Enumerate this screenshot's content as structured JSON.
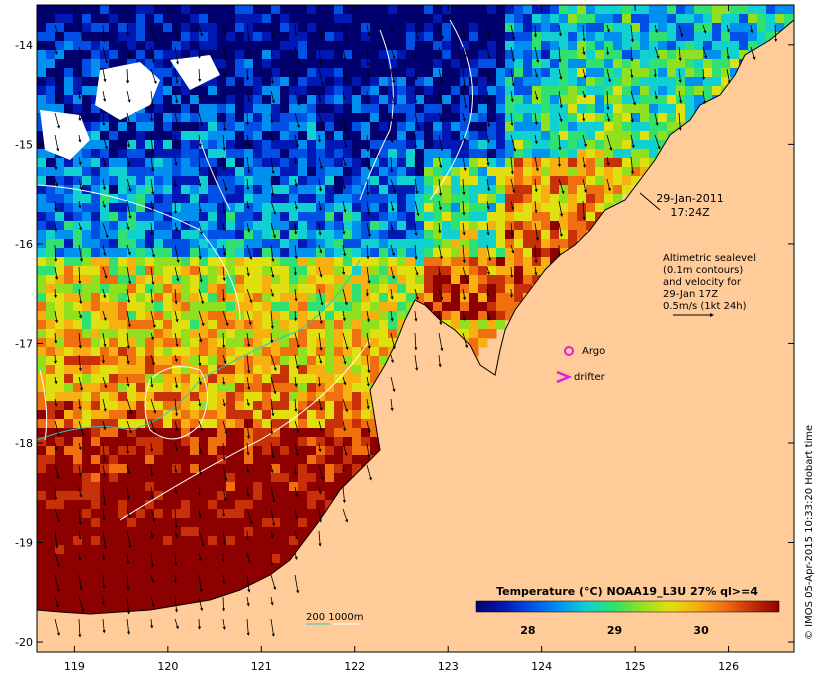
{
  "map": {
    "lon_range": [
      118.6,
      126.7
    ],
    "lat_range": [
      -20.1,
      -13.6
    ],
    "lon_ticks": [
      "119",
      "120",
      "121",
      "122",
      "123",
      "124",
      "125",
      "126"
    ],
    "lat_ticks": [
      "-14",
      "-15",
      "-16",
      "-17",
      "-18",
      "-19",
      "-20"
    ],
    "land_color": "#ffcb99",
    "ocean_color": "#ffcb99"
  },
  "annotations": {
    "datetime_line1": "29-Jan-2011",
    "datetime_line2": "17:24Z",
    "altimetry_lines": [
      "Altimetric sealevel",
      "(0.1m contours)",
      "and velocity for",
      "29-Jan 17Z",
      "0.5m/s (1kt 24h)"
    ],
    "argo_label": "Argo",
    "drifter_label": "drifter",
    "isobath_label": "200  1000m",
    "credit": "© IMOS 05-Apr-2015 10:33:20 Hobart time"
  },
  "colorbar": {
    "title": "Temperature (°C) NOAA19_L3U 27% ql>=4",
    "ticks": [
      "28",
      "29",
      "30"
    ],
    "min": 27.4,
    "max": 30.9,
    "colors": [
      "#00006e",
      "#0018b4",
      "#0050e6",
      "#0090f0",
      "#10d0d0",
      "#30e070",
      "#90e020",
      "#e0e010",
      "#f8b010",
      "#f07010",
      "#c83008",
      "#8c0000"
    ]
  },
  "markers": {
    "argo_color": "#e020d8",
    "drifter_color": "#e020d8",
    "isobath_200_color": "#30c8c0",
    "isobath_1000_color": "#ffffff"
  }
}
